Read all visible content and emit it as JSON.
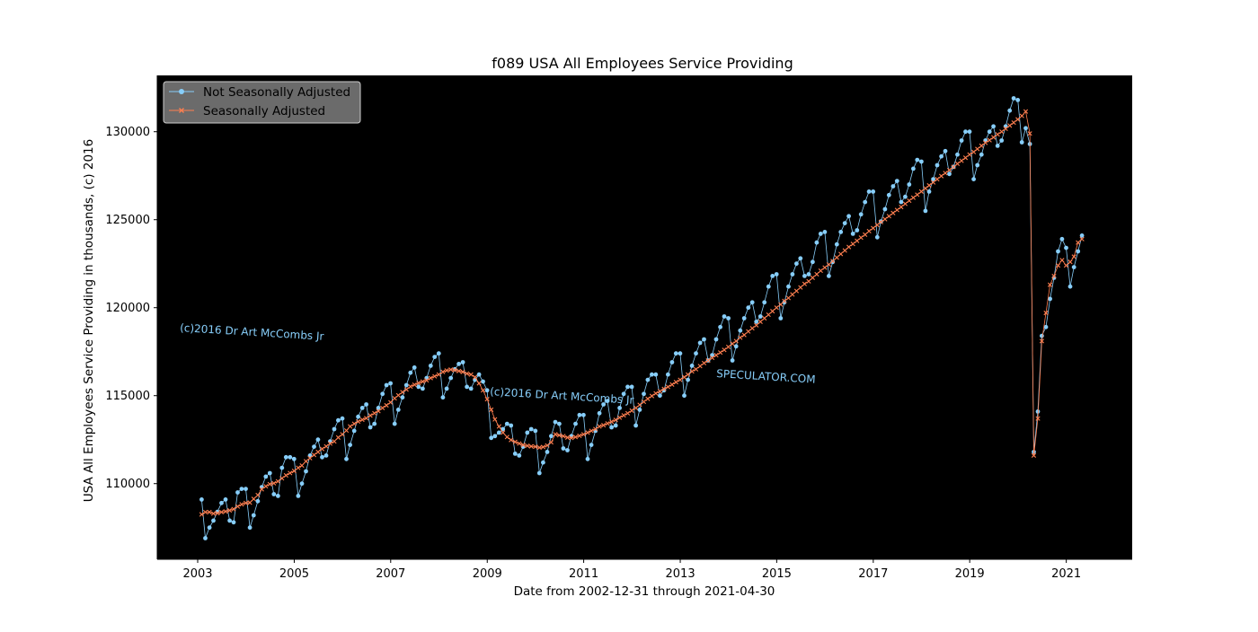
{
  "chart_data": {
    "type": "line",
    "title": "f089 USA All Employees Service Providing",
    "xlabel": "Date from 2002-12-31 through 2021-04-30",
    "ylabel": "USA All Employees Service Providing in thousands, (c) 2016",
    "xlim": [
      "2002-03-01",
      "2022-05-15"
    ],
    "ylim": [
      105700,
      133200
    ],
    "x_ticks": [
      "2003",
      "2005",
      "2007",
      "2009",
      "2011",
      "2013",
      "2015",
      "2017",
      "2019",
      "2021"
    ],
    "y_ticks": [
      110000,
      115000,
      120000,
      125000,
      130000
    ],
    "background": "#000000",
    "grid": false,
    "legend_position": "top-left",
    "watermarks": [
      "(c)2016 Dr Art McCombs Jr",
      "(c)2016 Dr Art McCombs Jr",
      "SPECULATOR.COM"
    ],
    "watermark_color": "#87cefa",
    "start_month": "2003-01",
    "series": [
      {
        "name": "Not Seasonally Adjusted",
        "color": "#87cefa",
        "marker": "circle",
        "values": [
          109100,
          106900,
          107500,
          107900,
          108400,
          108900,
          109100,
          107900,
          107800,
          109500,
          109700,
          109700,
          107500,
          108200,
          109000,
          109800,
          110400,
          110600,
          109400,
          109300,
          110900,
          111500,
          111500,
          111400,
          109300,
          110000,
          110700,
          111600,
          112100,
          112500,
          111500,
          111600,
          112400,
          113100,
          113600,
          113700,
          111400,
          112200,
          113000,
          113800,
          114300,
          114500,
          113200,
          113400,
          114300,
          115100,
          115600,
          115700,
          113400,
          114200,
          114900,
          115600,
          116300,
          116600,
          115500,
          115400,
          116000,
          116700,
          117200,
          117400,
          114900,
          115400,
          116000,
          116500,
          116800,
          116900,
          115500,
          115400,
          115900,
          116200,
          115800,
          115300,
          112600,
          112700,
          112900,
          113100,
          113400,
          113300,
          111700,
          111600,
          112100,
          112900,
          113100,
          113000,
          110600,
          111200,
          111800,
          112700,
          113500,
          113400,
          112000,
          111900,
          112700,
          113400,
          113900,
          113900,
          111400,
          112200,
          113000,
          114000,
          114500,
          114700,
          113200,
          113300,
          114300,
          115100,
          115500,
          115500,
          113300,
          114200,
          115100,
          115900,
          116200,
          116200,
          115000,
          115300,
          116200,
          116900,
          117400,
          117400,
          115000,
          115900,
          116700,
          117400,
          118000,
          118200,
          117000,
          117300,
          118200,
          118900,
          119500,
          119400,
          117000,
          117800,
          118700,
          119400,
          120000,
          120300,
          119200,
          119500,
          120300,
          121200,
          121800,
          121900,
          119400,
          120300,
          121200,
          121900,
          122500,
          122800,
          121800,
          121900,
          122600,
          123700,
          124200,
          124300,
          121800,
          122600,
          123600,
          124300,
          124800,
          125200,
          124200,
          124400,
          125300,
          126000,
          126600,
          126600,
          124000,
          124900,
          125600,
          126400,
          126900,
          127200,
          126000,
          126300,
          127000,
          127900,
          128400,
          128300,
          125500,
          126600,
          127300,
          128100,
          128600,
          128900,
          127600,
          128000,
          128700,
          129500,
          130000,
          130000,
          127300,
          128100,
          128700,
          129500,
          130000,
          130300,
          129200,
          129500,
          130300,
          131200,
          131900,
          131800,
          129400,
          130200,
          129300,
          111800,
          114100,
          118400,
          118900,
          120500,
          121700,
          123200,
          123900,
          123400,
          121200,
          122300,
          123200,
          124100
        ]
      },
      {
        "name": "Seasonally Adjusted",
        "color": "#ff7f50",
        "marker": "x",
        "values": [
          108250,
          108380,
          108380,
          108300,
          108320,
          108380,
          108420,
          108480,
          108550,
          108700,
          108820,
          108900,
          108920,
          109130,
          109350,
          109680,
          109850,
          109970,
          110020,
          110130,
          110300,
          110470,
          110600,
          110720,
          110900,
          111030,
          111270,
          111450,
          111630,
          111800,
          111970,
          112120,
          112280,
          112400,
          112620,
          112800,
          113020,
          113250,
          113400,
          113530,
          113630,
          113720,
          113870,
          114000,
          114120,
          114300,
          114450,
          114620,
          114850,
          115020,
          115200,
          115350,
          115520,
          115620,
          115720,
          115800,
          115870,
          116000,
          116100,
          116200,
          116350,
          116430,
          116480,
          116450,
          116400,
          116350,
          116250,
          116200,
          116050,
          115700,
          115300,
          114800,
          114200,
          113650,
          113250,
          112900,
          112650,
          112480,
          112370,
          112280,
          112200,
          112150,
          112120,
          112100,
          112050,
          112080,
          112170,
          112350,
          112800,
          112750,
          112700,
          112620,
          112600,
          112650,
          112720,
          112800,
          112900,
          113000,
          113100,
          113250,
          113320,
          113420,
          113520,
          113620,
          113750,
          113880,
          114000,
          114150,
          114300,
          114480,
          114650,
          114820,
          114980,
          115130,
          115250,
          115380,
          115500,
          115630,
          115770,
          115900,
          116050,
          116200,
          116380,
          116500,
          116680,
          116850,
          117000,
          117150,
          117300,
          117450,
          117600,
          117770,
          117950,
          118100,
          118300,
          118450,
          118650,
          118830,
          119000,
          119200,
          119400,
          119600,
          119800,
          120000,
          120180,
          120380,
          120550,
          120750,
          120950,
          121150,
          121350,
          121500,
          121700,
          121900,
          122100,
          122280,
          122450,
          122650,
          122850,
          123050,
          123250,
          123450,
          123620,
          123800,
          123980,
          124150,
          124350,
          124520,
          124700,
          124870,
          125030,
          125200,
          125380,
          125550,
          125720,
          125900,
          126080,
          126250,
          126420,
          126600,
          126780,
          126950,
          127120,
          127300,
          127480,
          127650,
          127820,
          128000,
          128180,
          128350,
          128520,
          128700,
          128850,
          129020,
          129200,
          129370,
          129520,
          129680,
          129850,
          130000,
          130170,
          130350,
          130520,
          130700,
          130900,
          131150,
          129900,
          111600,
          113700,
          118100,
          119700,
          121300,
          121800,
          122400,
          122700,
          122400,
          122600,
          122900,
          123700,
          123900
        ]
      }
    ]
  }
}
